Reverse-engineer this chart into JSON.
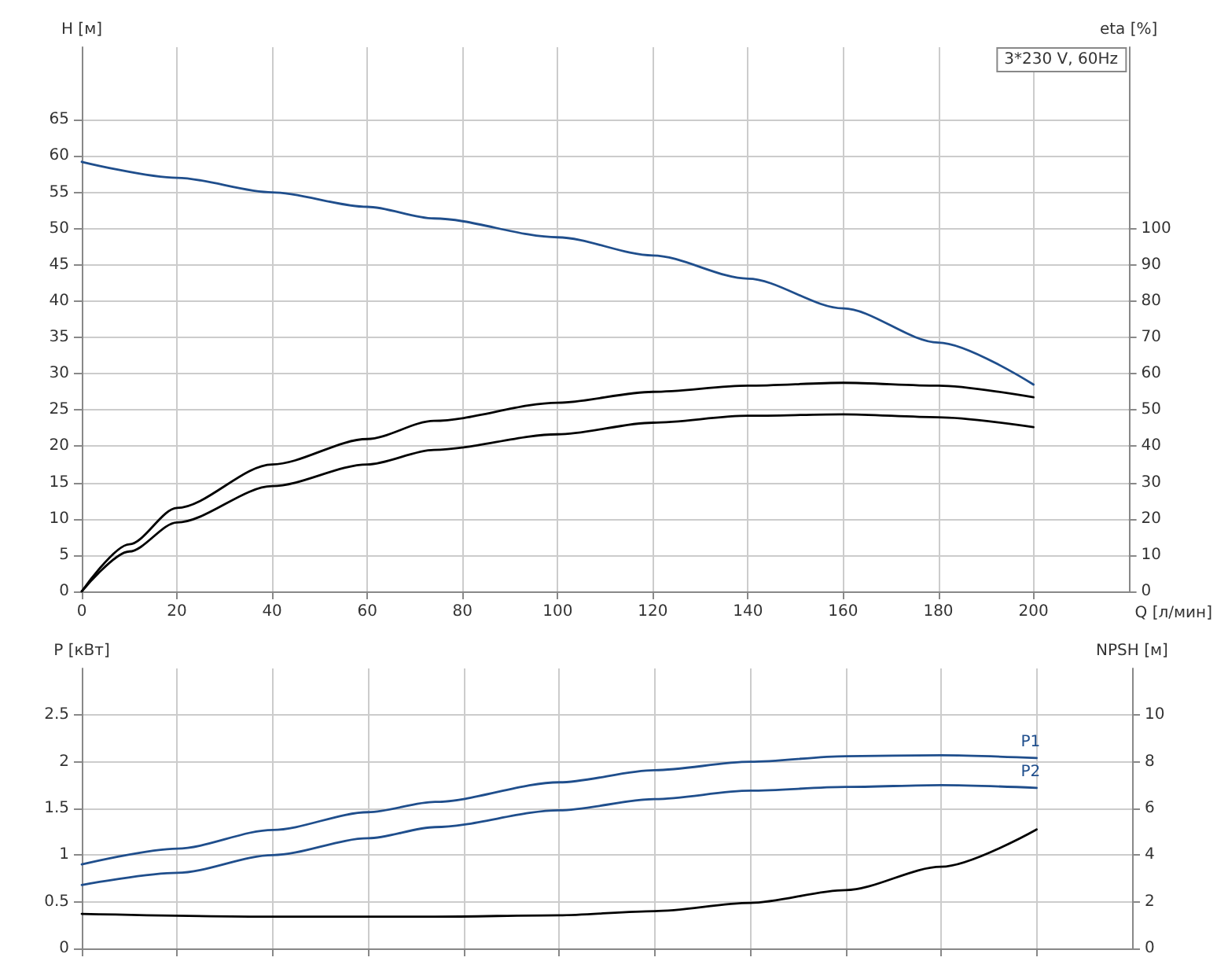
{
  "chart_data": [
    {
      "type": "line",
      "title": "3*230 V, 60Hz",
      "xlabel": "Q [л/мин]",
      "ylabel": "H [м]",
      "y2label": "eta [%]",
      "xlim": [
        0,
        220
      ],
      "xticks": [
        0,
        20,
        40,
        60,
        80,
        100,
        120,
        140,
        160,
        180,
        200
      ],
      "ylim": [
        0,
        75
      ],
      "yticks": [
        0,
        5,
        10,
        15,
        20,
        25,
        30,
        35,
        40,
        45,
        50,
        55,
        60,
        65
      ],
      "y2lim": [
        0,
        150
      ],
      "y2ticks": [
        0,
        10,
        20,
        30,
        40,
        50,
        60,
        70,
        80,
        90,
        100
      ],
      "grid": true,
      "marker": "none",
      "line_style": "solid",
      "series": [
        {
          "color": "#1f4e8c",
          "x": [
            0,
            20,
            40,
            60,
            74,
            100,
            120,
            140,
            160,
            180,
            200
          ],
          "values": [
            59.2,
            57,
            55,
            53,
            51.4,
            48.8,
            46.3,
            43.1,
            39,
            34.3,
            28.5
          ]
        },
        {
          "color": "#000000",
          "axis": "y2",
          "x": [
            0,
            10,
            20,
            40,
            60,
            74,
            100,
            120,
            140,
            160,
            180,
            200
          ],
          "values": [
            0,
            13,
            23,
            35,
            42,
            47,
            52,
            55,
            56.7,
            57.5,
            56.7,
            53.5
          ]
        },
        {
          "color": "#000000",
          "axis": "y2",
          "x": [
            0,
            10,
            20,
            40,
            60,
            74,
            100,
            120,
            140,
            160,
            180,
            200
          ],
          "values": [
            0,
            11,
            19,
            29,
            35,
            39,
            43.3,
            46.5,
            48.4,
            48.8,
            48,
            45.3
          ]
        }
      ]
    },
    {
      "type": "line",
      "ylabel": "P [кВт]",
      "y2label": "NPSH [м]",
      "xlim": [
        0,
        220
      ],
      "xticks": [
        0,
        20,
        40,
        60,
        80,
        100,
        120,
        140,
        160,
        180,
        200
      ],
      "ylim": [
        0,
        3
      ],
      "yticks": [
        0,
        0.5,
        1.0,
        1.5,
        2.0,
        2.5
      ],
      "y2lim": [
        0,
        12
      ],
      "y2ticks": [
        0,
        2,
        4,
        6,
        8,
        10
      ],
      "grid": true,
      "tick_labels": "y",
      "marker": "none",
      "line_style": "solid",
      "series": [
        {
          "name": "P1",
          "color": "#1f4e8c",
          "x": [
            0,
            20,
            40,
            60,
            74,
            100,
            120,
            140,
            160,
            180,
            200
          ],
          "values": [
            0.9,
            1.07,
            1.27,
            1.46,
            1.57,
            1.78,
            1.91,
            2.0,
            2.06,
            2.07,
            2.04
          ]
        },
        {
          "name": "P2",
          "color": "#1f4e8c",
          "x": [
            0,
            20,
            40,
            60,
            74,
            100,
            120,
            140,
            160,
            180,
            200
          ],
          "values": [
            0.68,
            0.81,
            1.0,
            1.18,
            1.3,
            1.48,
            1.6,
            1.69,
            1.73,
            1.75,
            1.72
          ]
        },
        {
          "color": "#000000",
          "axis": "y2",
          "x": [
            0,
            40,
            74,
            100,
            120,
            140,
            160,
            180,
            200
          ],
          "values": [
            1.48,
            1.36,
            1.36,
            1.42,
            1.6,
            1.95,
            2.5,
            3.5,
            5.1
          ]
        }
      ]
    }
  ]
}
